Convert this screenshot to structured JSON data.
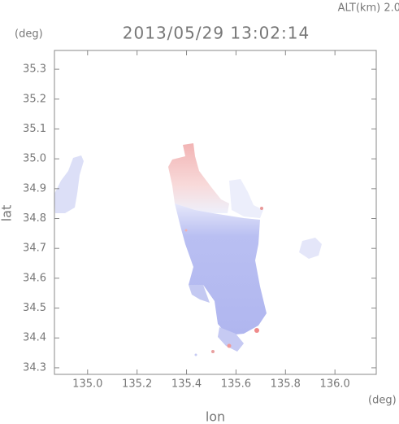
{
  "chart_data": {
    "type": "map",
    "title": "2013/05/29 13:02:14",
    "altitude_label": "ALT(km) 2.0",
    "y_unit": "(deg)",
    "x_unit": "(deg)",
    "x_label": "lon",
    "y_label": "lat",
    "xlim": [
      134.866,
      136.167
    ],
    "ylim": [
      34.278,
      35.363
    ],
    "xticks": [
      {
        "value": 135,
        "label": "135.0"
      },
      135.2,
      135.4,
      135.6,
      135.8,
      {
        "value": 136,
        "label": "136.0"
      }
    ],
    "yticks": [
      34.3,
      34.4,
      34.5,
      34.6,
      34.7,
      34.8,
      34.9,
      {
        "value": 35,
        "label": "35.0"
      },
      35.1,
      35.2,
      35.3
    ]
  }
}
